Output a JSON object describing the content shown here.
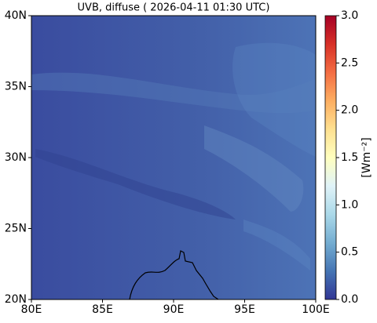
{
  "title": "UVB, diffuse ( 2026-04-11 01:30 UTC)",
  "map": {
    "xlim": [
      80,
      100
    ],
    "ylim": [
      20,
      40
    ],
    "xticks": [
      {
        "value": 80,
        "label": "80E"
      },
      {
        "value": 85,
        "label": "85E"
      },
      {
        "value": 90,
        "label": "90E"
      },
      {
        "value": 95,
        "label": "95E"
      },
      {
        "value": 100,
        "label": "100E"
      }
    ],
    "yticks": [
      {
        "value": 20,
        "label": "20N"
      },
      {
        "value": 25,
        "label": "25N"
      },
      {
        "value": 30,
        "label": "30N"
      },
      {
        "value": 35,
        "label": "35N"
      },
      {
        "value": 40,
        "label": "40N"
      }
    ]
  },
  "colorbar": {
    "lim": [
      0,
      3
    ],
    "label": "[Wm⁻²]",
    "ticks": [
      {
        "value": 0,
        "label": "0.0"
      },
      {
        "value": 0.5,
        "label": "0.5"
      },
      {
        "value": 1,
        "label": "1.0"
      },
      {
        "value": 1.5,
        "label": "1.5"
      },
      {
        "value": 2,
        "label": "2.0"
      },
      {
        "value": 2.5,
        "label": "2.5"
      },
      {
        "value": 3,
        "label": "3.0"
      }
    ],
    "colors": [
      "#313695",
      "#4575b4",
      "#74add1",
      "#abd9e9",
      "#e0f3f8",
      "#ffffbf",
      "#fee090",
      "#fdae61",
      "#f46d43",
      "#d73027",
      "#a50026"
    ]
  }
}
